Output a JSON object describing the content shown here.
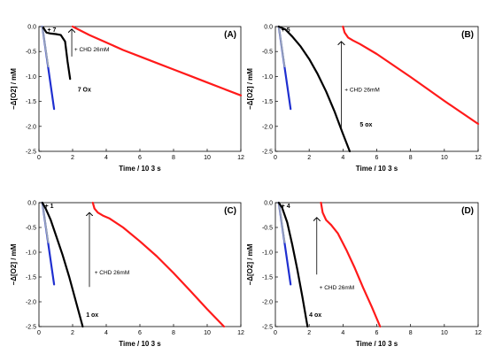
{
  "chart_data": [
    {
      "panel": "(A)",
      "type": "line",
      "xlabel": "Time / 10 3 s",
      "ylabel": "−Δ[O2] / mM",
      "xlim": [
        0,
        12
      ],
      "ylim": [
        -2.5,
        0
      ],
      "xticks": [
        0,
        2,
        4,
        6,
        8,
        10,
        12
      ],
      "yticks": [
        0.0,
        -0.5,
        -1.0,
        -1.5,
        -2.0,
        -2.5
      ],
      "xtick_labels": [
        "0",
        "2",
        "4",
        "6",
        "8",
        "10",
        "12"
      ],
      "ytick_labels": [
        "0.0",
        "-0.5",
        "-1.0",
        "-1.5",
        "-2.0",
        "-2.5"
      ],
      "annotations": {
        "addition": "+ 7",
        "ox_label": "7 Ox",
        "chd_label": "+ CHD 26mM"
      },
      "series": [
        {
          "color": "#1f2fd0",
          "x": [
            0.2,
            0.9
          ],
          "y": [
            0.0,
            -1.65
          ]
        },
        {
          "color": "#9aa5b8",
          "x": [
            0.2,
            0.55
          ],
          "y": [
            0.0,
            -0.8
          ]
        },
        {
          "color": "#000000",
          "x": [
            0.25,
            0.45,
            0.7,
            1.0,
            1.3,
            1.55,
            1.7,
            1.85
          ],
          "y": [
            -0.02,
            -0.12,
            -0.14,
            -0.15,
            -0.17,
            -0.3,
            -0.7,
            -1.05
          ]
        },
        {
          "color": "#ff1a1a",
          "x": [
            2.0,
            3.0,
            4.0,
            5.0,
            6.0,
            7.0,
            8.0,
            9.0,
            10.0,
            11.0,
            12.0
          ],
          "y": [
            0.0,
            -0.17,
            -0.32,
            -0.47,
            -0.6,
            -0.73,
            -0.86,
            -0.99,
            -1.12,
            -1.25,
            -1.38
          ]
        }
      ],
      "arrow": {
        "x": 1.95,
        "y_from": -0.6,
        "y_to": -0.05
      }
    },
    {
      "panel": "(B)",
      "type": "line",
      "xlabel": "Time / 10 3 s",
      "ylabel": "−Δ[O2] / mM",
      "xlim": [
        0,
        12
      ],
      "ylim": [
        -2.5,
        0
      ],
      "xticks": [
        0,
        2,
        4,
        6,
        8,
        10,
        12
      ],
      "yticks": [
        0.0,
        -0.5,
        -1.0,
        -1.5,
        -2.0,
        -2.5
      ],
      "xtick_labels": [
        "0",
        "2",
        "4",
        "6",
        "8",
        "10",
        "12"
      ],
      "ytick_labels": [
        "0.0",
        "-0.5",
        "-1.0",
        "-1.5",
        "-2.0",
        "-2.5"
      ],
      "annotations": {
        "addition": "+ 5",
        "ox_label": "5 ox",
        "chd_label": "+ CHD 26mM"
      },
      "series": [
        {
          "color": "#1f2fd0",
          "x": [
            0.2,
            0.9
          ],
          "y": [
            0.0,
            -1.65
          ]
        },
        {
          "color": "#9aa5b8",
          "x": [
            0.2,
            0.55
          ],
          "y": [
            0.0,
            -0.8
          ]
        },
        {
          "color": "#000000",
          "x": [
            0.2,
            0.6,
            1.0,
            1.5,
            2.0,
            2.5,
            3.0,
            3.5,
            4.0,
            4.4
          ],
          "y": [
            0.0,
            -0.06,
            -0.2,
            -0.4,
            -0.65,
            -0.95,
            -1.3,
            -1.7,
            -2.15,
            -2.5
          ]
        },
        {
          "color": "#ff1a1a",
          "x": [
            4.0,
            4.1,
            4.3,
            4.6,
            5.0,
            6.0,
            7.0,
            8.0,
            9.0,
            10.0,
            11.0,
            12.0
          ],
          "y": [
            0.0,
            -0.12,
            -0.22,
            -0.28,
            -0.35,
            -0.55,
            -0.78,
            -1.01,
            -1.25,
            -1.49,
            -1.72,
            -1.95
          ]
        }
      ],
      "arrow": {
        "x": 3.9,
        "y_from": -2.1,
        "y_to": -0.3
      }
    },
    {
      "panel": "(C)",
      "type": "line",
      "xlabel": "Time / 10 3 s",
      "ylabel": "−Δ[O2] / mM",
      "xlim": [
        0,
        12
      ],
      "ylim": [
        -2.5,
        0
      ],
      "xticks": [
        0,
        2,
        4,
        6,
        8,
        10,
        12
      ],
      "yticks": [
        0.0,
        -0.5,
        -1.0,
        -1.5,
        -2.0,
        -2.5
      ],
      "xtick_labels": [
        "0",
        "2",
        "4",
        "6",
        "8",
        "10",
        "12"
      ],
      "ytick_labels": [
        "0.0",
        "-0.5",
        "-1.0",
        "-1.5",
        "-2.0",
        "-2.5"
      ],
      "annotations": {
        "addition": "+ 1",
        "ox_label": "1 ox",
        "chd_label": "+ CHD 26mM"
      },
      "series": [
        {
          "color": "#1f2fd0",
          "x": [
            0.2,
            0.9
          ],
          "y": [
            0.0,
            -1.65
          ]
        },
        {
          "color": "#9aa5b8",
          "x": [
            0.2,
            0.55
          ],
          "y": [
            0.0,
            -0.8
          ]
        },
        {
          "color": "#000000",
          "x": [
            0.2,
            0.4,
            0.7,
            1.0,
            1.4,
            1.8,
            2.2,
            2.6
          ],
          "y": [
            0.0,
            -0.12,
            -0.35,
            -0.65,
            -1.05,
            -1.5,
            -2.0,
            -2.5
          ]
        },
        {
          "color": "#ff1a1a",
          "x": [
            3.2,
            3.3,
            3.5,
            3.8,
            4.2,
            5.0,
            6.0,
            7.0,
            8.0,
            9.0,
            10.0,
            11.0
          ],
          "y": [
            0.0,
            -0.12,
            -0.2,
            -0.26,
            -0.32,
            -0.5,
            -0.78,
            -1.08,
            -1.42,
            -1.78,
            -2.15,
            -2.5
          ]
        }
      ],
      "arrow": {
        "x": 3.0,
        "y_from": -1.7,
        "y_to": -0.2
      }
    },
    {
      "panel": "(D)",
      "type": "line",
      "xlabel": "Time / 10 3 s",
      "ylabel": "−Δ[O2] / mM",
      "xlim": [
        0,
        12
      ],
      "ylim": [
        -2.5,
        0
      ],
      "xticks": [
        0,
        2,
        4,
        6,
        8,
        10,
        12
      ],
      "yticks": [
        0.0,
        -0.5,
        -1.0,
        -1.5,
        -2.0,
        -2.5
      ],
      "xtick_labels": [
        "0",
        "2",
        "4",
        "6",
        "8",
        "10",
        "12"
      ],
      "ytick_labels": [
        "0.0",
        "-0.5",
        "-1.0",
        "-1.5",
        "-2.0",
        "-2.5"
      ],
      "annotations": {
        "addition": "+ 4",
        "ox_label": "4 ox",
        "chd_label": "+ CHD 26mM"
      },
      "series": [
        {
          "color": "#1f2fd0",
          "x": [
            0.2,
            0.9
          ],
          "y": [
            0.0,
            -1.65
          ]
        },
        {
          "color": "#9aa5b8",
          "x": [
            0.2,
            0.55
          ],
          "y": [
            0.0,
            -0.8
          ]
        },
        {
          "color": "#000000",
          "x": [
            0.2,
            0.4,
            0.7,
            1.0,
            1.3,
            1.6,
            1.9
          ],
          "y": [
            0.0,
            -0.1,
            -0.4,
            -0.85,
            -1.35,
            -1.9,
            -2.5
          ]
        },
        {
          "color": "#ff1a1a",
          "x": [
            2.7,
            2.8,
            3.0,
            3.3,
            3.7,
            4.2,
            4.7,
            5.2,
            5.7,
            6.2
          ],
          "y": [
            0.0,
            -0.2,
            -0.35,
            -0.45,
            -0.62,
            -0.95,
            -1.32,
            -1.72,
            -2.1,
            -2.5
          ]
        }
      ],
      "arrow": {
        "x": 2.45,
        "y_from": -1.45,
        "y_to": -0.3
      }
    }
  ]
}
